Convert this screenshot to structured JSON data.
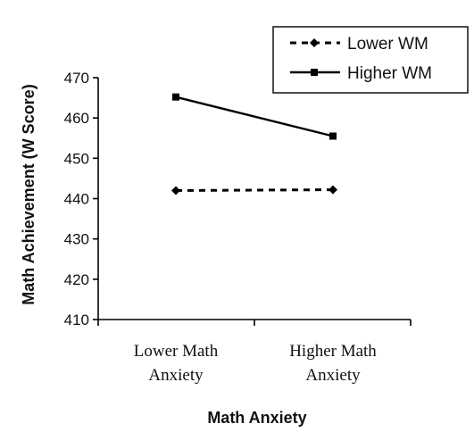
{
  "chart_data": {
    "type": "line",
    "title": "",
    "xlabel": "Math Anxiety",
    "ylabel": "Math Achievement (W Score)",
    "categories": [
      [
        "Lower Math",
        "Anxiety"
      ],
      [
        "Higher Math",
        "Anxiety"
      ]
    ],
    "ylim": [
      410,
      470
    ],
    "yticks": [
      410,
      420,
      430,
      440,
      450,
      460,
      470
    ],
    "grid": false,
    "legend_position": "top-right",
    "series": [
      {
        "name": "Lower WM",
        "values": [
          442,
          442.2
        ],
        "line_style": "dashed",
        "marker": "diamond",
        "color": "#000000"
      },
      {
        "name": "Higher WM",
        "values": [
          465.2,
          455.5
        ],
        "line_style": "solid",
        "marker": "square",
        "color": "#000000"
      }
    ]
  }
}
